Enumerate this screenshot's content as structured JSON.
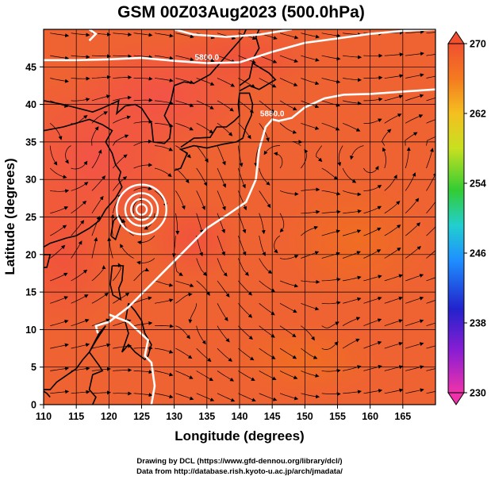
{
  "chart_data": {
    "type": "heatmap",
    "title": "GSM 00Z03Aug2023 (500.0hPa)",
    "xlabel": "Longitude (degrees)",
    "ylabel": "Latitude  (degrees)",
    "xlim": [
      110,
      170
    ],
    "ylim": [
      0,
      50
    ],
    "x_ticks": [
      "110",
      "115",
      "120",
      "125",
      "130",
      "135",
      "140",
      "145",
      "150",
      "155",
      "160",
      "165"
    ],
    "y_ticks": [
      "0",
      "5",
      "10",
      "15",
      "20",
      "25",
      "30",
      "35",
      "40",
      "45"
    ],
    "grid": true,
    "colorbar": {
      "ticks": [
        "270",
        "262",
        "254",
        "246",
        "238",
        "230"
      ],
      "min": 230,
      "max": 270,
      "placement": "right"
    },
    "field_samples": [
      {
        "lon": 115,
        "lat": 40,
        "value": 268
      },
      {
        "lon": 125,
        "lat": 30,
        "value": 268
      },
      {
        "lon": 140,
        "lat": 45,
        "value": 266
      },
      {
        "lon": 155,
        "lat": 30,
        "value": 265
      },
      {
        "lon": 150,
        "lat": 15,
        "value": 266
      },
      {
        "lon": 135,
        "lat": 10,
        "value": 265
      },
      {
        "lon": 120,
        "lat": 5,
        "value": 265
      }
    ],
    "contours": [
      {
        "label": "5800.0",
        "path": [
          [
            110,
            45.9
          ],
          [
            115,
            45.9
          ],
          [
            120,
            46.0
          ],
          [
            125,
            46.2
          ],
          [
            130,
            45.8
          ],
          [
            135,
            45.5
          ],
          [
            140,
            45.6
          ],
          [
            145,
            47.0
          ],
          [
            150,
            48.2
          ],
          [
            155,
            48.8
          ],
          [
            160,
            49.4
          ],
          [
            165,
            49.8
          ],
          [
            170,
            50
          ]
        ]
      },
      {
        "label": "5880.0",
        "path": [
          [
            170,
            42.0
          ],
          [
            165,
            41.7
          ],
          [
            160,
            41.4
          ],
          [
            156,
            41.3
          ],
          [
            153,
            40.8
          ],
          [
            150,
            39.6
          ],
          [
            148,
            38.2
          ],
          [
            146,
            37.8
          ],
          [
            145,
            38.0
          ],
          [
            144,
            37.0
          ],
          [
            143,
            34.0
          ],
          [
            142.5,
            30.0
          ],
          [
            141,
            27.0
          ],
          [
            138.5,
            25.5
          ],
          [
            135,
            23.5
          ],
          [
            131,
            20.0
          ],
          [
            127,
            16.5
          ],
          [
            123,
            13.0
          ],
          [
            120,
            11.0
          ],
          [
            118,
            10.5
          ],
          [
            118.3,
            9.5
          ]
        ]
      },
      {
        "label": "",
        "path": [
          [
            120,
            12.0
          ],
          [
            123,
            11.0
          ],
          [
            126,
            8.6
          ],
          [
            125.5,
            6.5
          ],
          [
            126.5,
            5.6
          ],
          [
            127,
            2.5
          ],
          [
            126.5,
            0
          ]
        ]
      },
      {
        "label": "",
        "path": [
          [
            130,
            50
          ],
          [
            133,
            49.3
          ],
          [
            138,
            49.0
          ],
          [
            143,
            49.3
          ],
          [
            148,
            50
          ]
        ]
      },
      {
        "label": "",
        "path": [
          [
            117,
            48.5
          ],
          [
            118,
            49.4
          ],
          [
            117,
            50
          ]
        ]
      }
    ],
    "closed_contours": [
      {
        "center": [
          125,
          26
        ],
        "radii_deg": [
          3.8,
          2.5,
          1.6,
          0.8
        ]
      }
    ]
  },
  "credits": {
    "line1": "Drawing by DCL (https://www.gfd-dennou.org/library/dcl/)",
    "line2": "Data from http://database.rish.kyoto-u.ac.jp/arch/jmadata/"
  }
}
